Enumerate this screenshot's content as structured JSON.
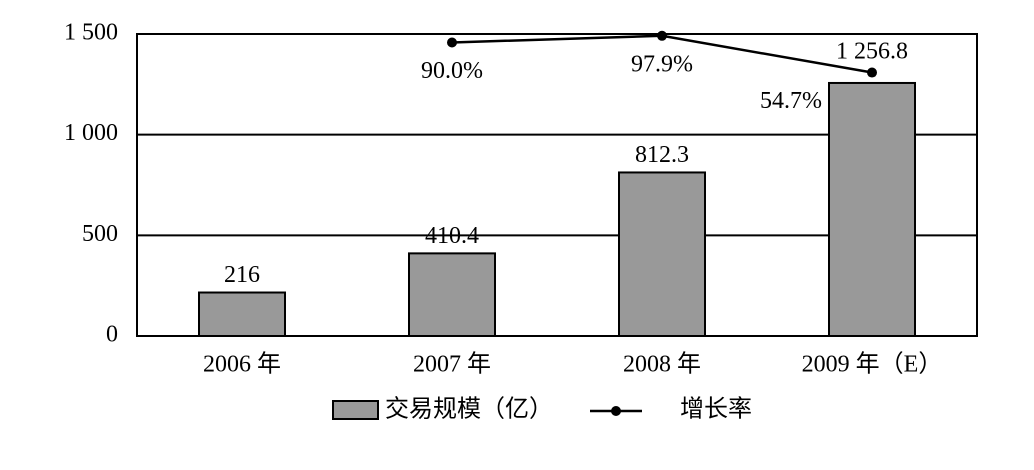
{
  "chart_data": {
    "type": "bar-line",
    "categories": [
      "2006 年",
      "2007 年",
      "2008 年",
      "2009 年（E）"
    ],
    "series": [
      {
        "name": "交易规模（亿）",
        "type": "bar",
        "color": "#999999",
        "values": [
          216,
          410.4,
          812.3,
          1256.8
        ],
        "value_labels": [
          "216",
          "410.4",
          "812.3",
          "1 256.8"
        ]
      },
      {
        "name": "增长率",
        "type": "line",
        "axis": "y2",
        "color": "#000000",
        "values": [
          null,
          90.0,
          97.9,
          54.7
        ],
        "value_labels": [
          null,
          "90.0%",
          "97.9%",
          "54.7%"
        ]
      }
    ],
    "ylim": [
      0,
      1500
    ],
    "yticks": [
      0,
      500,
      {
        "value": 1000,
        "label": "1 000"
      },
      {
        "value": 1500,
        "label": "1 500"
      }
    ],
    "y2lim": [
      -255,
      100
    ],
    "grid": true
  }
}
